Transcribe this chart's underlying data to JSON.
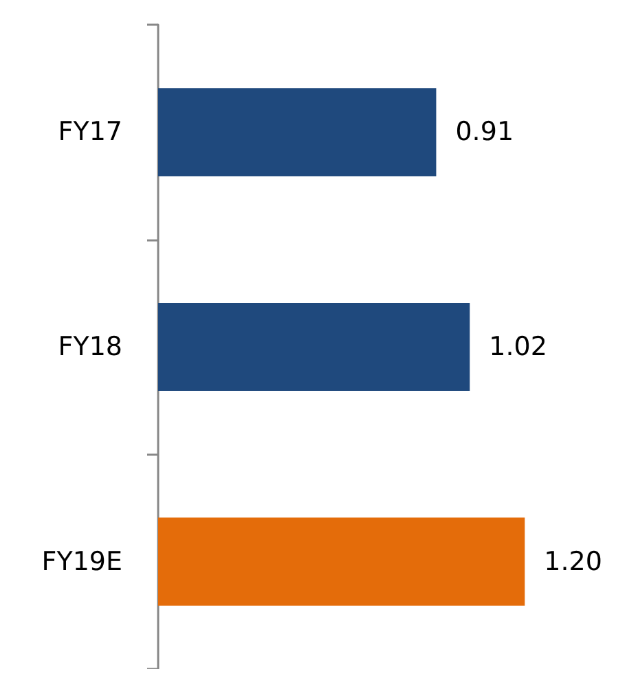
{
  "chart_data": {
    "type": "bar",
    "orientation": "horizontal",
    "categories": [
      "FY17",
      "FY18",
      "FY19E"
    ],
    "values": [
      0.91,
      1.02,
      1.2
    ],
    "value_labels": [
      "0.91",
      "1.02",
      "1.20"
    ],
    "colors": [
      "#1f497d",
      "#1f497d",
      "#e46c0a"
    ]
  }
}
